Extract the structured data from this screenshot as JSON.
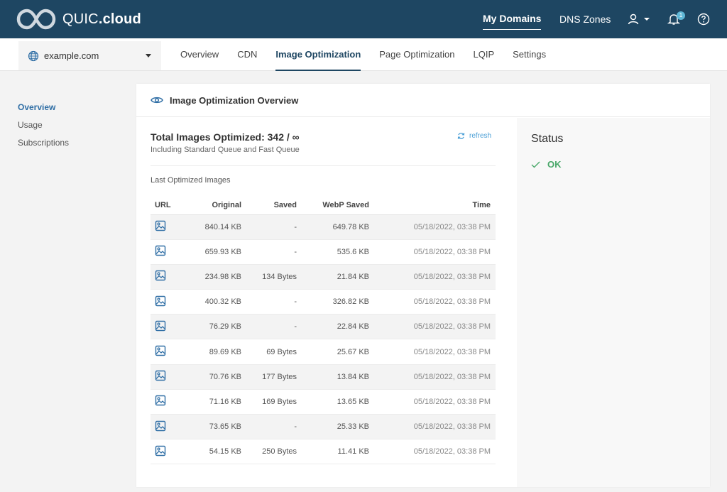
{
  "header": {
    "brand_name": "QUIC",
    "brand_suffix": ".cloud",
    "nav": [
      {
        "label": "My Domains",
        "active": true
      },
      {
        "label": "DNS Zones",
        "active": false
      }
    ],
    "notifications_count": "1",
    "icons": [
      "logo-icon",
      "user-icon",
      "bell-icon",
      "help-icon"
    ]
  },
  "subbar": {
    "domain": "example.com",
    "tabs": [
      {
        "label": "Overview"
      },
      {
        "label": "CDN"
      },
      {
        "label": "Image Optimization",
        "active": true
      },
      {
        "label": "Page Optimization"
      },
      {
        "label": "LQIP"
      },
      {
        "label": "Settings"
      }
    ]
  },
  "sidebar": {
    "items": [
      {
        "label": "Overview",
        "active": true
      },
      {
        "label": "Usage"
      },
      {
        "label": "Subscriptions"
      }
    ]
  },
  "card": {
    "title": "Image Optimization Overview",
    "total_label": "Total Images Optimized: 342 / ∞",
    "total_sub": "Including Standard Queue and Fast Queue",
    "refresh_label": "refresh",
    "last_title": "Last Optimized Images",
    "columns": [
      "URL",
      "Original",
      "Saved",
      "WebP Saved",
      "Time"
    ],
    "rows": [
      {
        "original": "840.14 KB",
        "saved": "-",
        "webp": "649.78 KB",
        "time": "05/18/2022, 03:38 PM"
      },
      {
        "original": "659.93 KB",
        "saved": "-",
        "webp": "535.6 KB",
        "time": "05/18/2022, 03:38 PM"
      },
      {
        "original": "234.98 KB",
        "saved": "134 Bytes",
        "webp": "21.84 KB",
        "time": "05/18/2022, 03:38 PM"
      },
      {
        "original": "400.32 KB",
        "saved": "-",
        "webp": "326.82 KB",
        "time": "05/18/2022, 03:38 PM"
      },
      {
        "original": "76.29 KB",
        "saved": "-",
        "webp": "22.84 KB",
        "time": "05/18/2022, 03:38 PM"
      },
      {
        "original": "89.69 KB",
        "saved": "69 Bytes",
        "webp": "25.67 KB",
        "time": "05/18/2022, 03:38 PM"
      },
      {
        "original": "70.76 KB",
        "saved": "177 Bytes",
        "webp": "13.84 KB",
        "time": "05/18/2022, 03:38 PM"
      },
      {
        "original": "71.16 KB",
        "saved": "169 Bytes",
        "webp": "13.65 KB",
        "time": "05/18/2022, 03:38 PM"
      },
      {
        "original": "73.65 KB",
        "saved": "-",
        "webp": "25.33 KB",
        "time": "05/18/2022, 03:38 PM"
      },
      {
        "original": "54.15 KB",
        "saved": "250 Bytes",
        "webp": "11.41 KB",
        "time": "05/18/2022, 03:38 PM"
      }
    ],
    "row_icon": "image-icon"
  },
  "status": {
    "title": "Status",
    "value": "OK",
    "ok_color": "#4aa86a"
  },
  "colors": {
    "topbar": "#1e4662",
    "accent": "#2f6ea5",
    "link": "#4a9fd6"
  }
}
